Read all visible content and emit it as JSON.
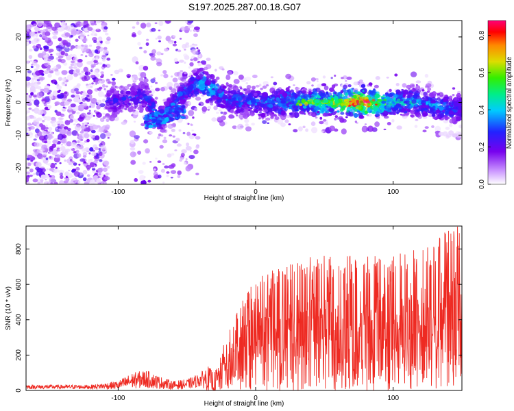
{
  "title": "S197.2025.287.00.18.G07",
  "chart_data": [
    {
      "type": "heatmap",
      "xlabel": "Height of straight line (km)",
      "ylabel": "Frequency (Hz)",
      "xlim": [
        -167,
        150
      ],
      "ylim": [
        -25,
        25
      ],
      "xticks": [
        -100,
        0,
        100
      ],
      "yticks": [
        -20,
        -10,
        0,
        10,
        20
      ],
      "colorbar": {
        "label": "Normalized spectral amplitude",
        "range": [
          0.0,
          0.88
        ],
        "ticks": [
          0.0,
          0.2,
          0.4,
          0.6,
          0.8
        ]
      },
      "ridge": {
        "description": "Main signal band near 0 Hz, rising to about 6 Hz near -40 km",
        "points": [
          {
            "x": -110,
            "f": 0,
            "amp": 0.25
          },
          {
            "x": -80,
            "f": 2,
            "amp": 0.3
          },
          {
            "x": -70,
            "f": -6,
            "amp": 0.35
          },
          {
            "x": -50,
            "f": 4,
            "amp": 0.35
          },
          {
            "x": -40,
            "f": 6,
            "amp": 0.45
          },
          {
            "x": -20,
            "f": 1,
            "amp": 0.35
          },
          {
            "x": 0,
            "f": 0,
            "amp": 0.35
          },
          {
            "x": 30,
            "f": 0,
            "amp": 0.45
          },
          {
            "x": 60,
            "f": 0,
            "amp": 0.65
          },
          {
            "x": 78,
            "f": 0,
            "amp": 0.88
          },
          {
            "x": 100,
            "f": 0,
            "amp": 0.45
          },
          {
            "x": 120,
            "f": 0,
            "amp": 0.4
          },
          {
            "x": 145,
            "f": -2,
            "amp": 0.35
          }
        ]
      }
    },
    {
      "type": "line",
      "xlabel": "Height of straight line (km)",
      "ylabel": "SNR (10 * v/v)",
      "xlim": [
        -167,
        150
      ],
      "ylim": [
        0,
        930
      ],
      "xticks": [
        -100,
        0,
        100
      ],
      "yticks": [
        0,
        200,
        400,
        600,
        800
      ],
      "series": [
        {
          "name": "SNR",
          "color": "#ee2a22",
          "envelope": {
            "x": [
              -167,
              -120,
              -100,
              -90,
              -80,
              -70,
              -60,
              -50,
              -40,
              -35,
              -30,
              -20,
              -10,
              0,
              20,
              40,
              60,
              80,
              100,
              120,
              140,
              150
            ],
            "y_mean": [
              20,
              20,
              30,
              55,
              65,
              45,
              30,
              35,
              60,
              70,
              40,
              140,
              220,
              260,
              320,
              370,
              390,
              380,
              380,
              400,
              400,
              400
            ],
            "y_peak": [
              35,
              35,
              60,
              110,
              130,
              90,
              60,
              70,
              110,
              160,
              120,
              330,
              500,
              650,
              700,
              760,
              770,
              760,
              760,
              820,
              920,
              930
            ]
          }
        }
      ]
    }
  ]
}
